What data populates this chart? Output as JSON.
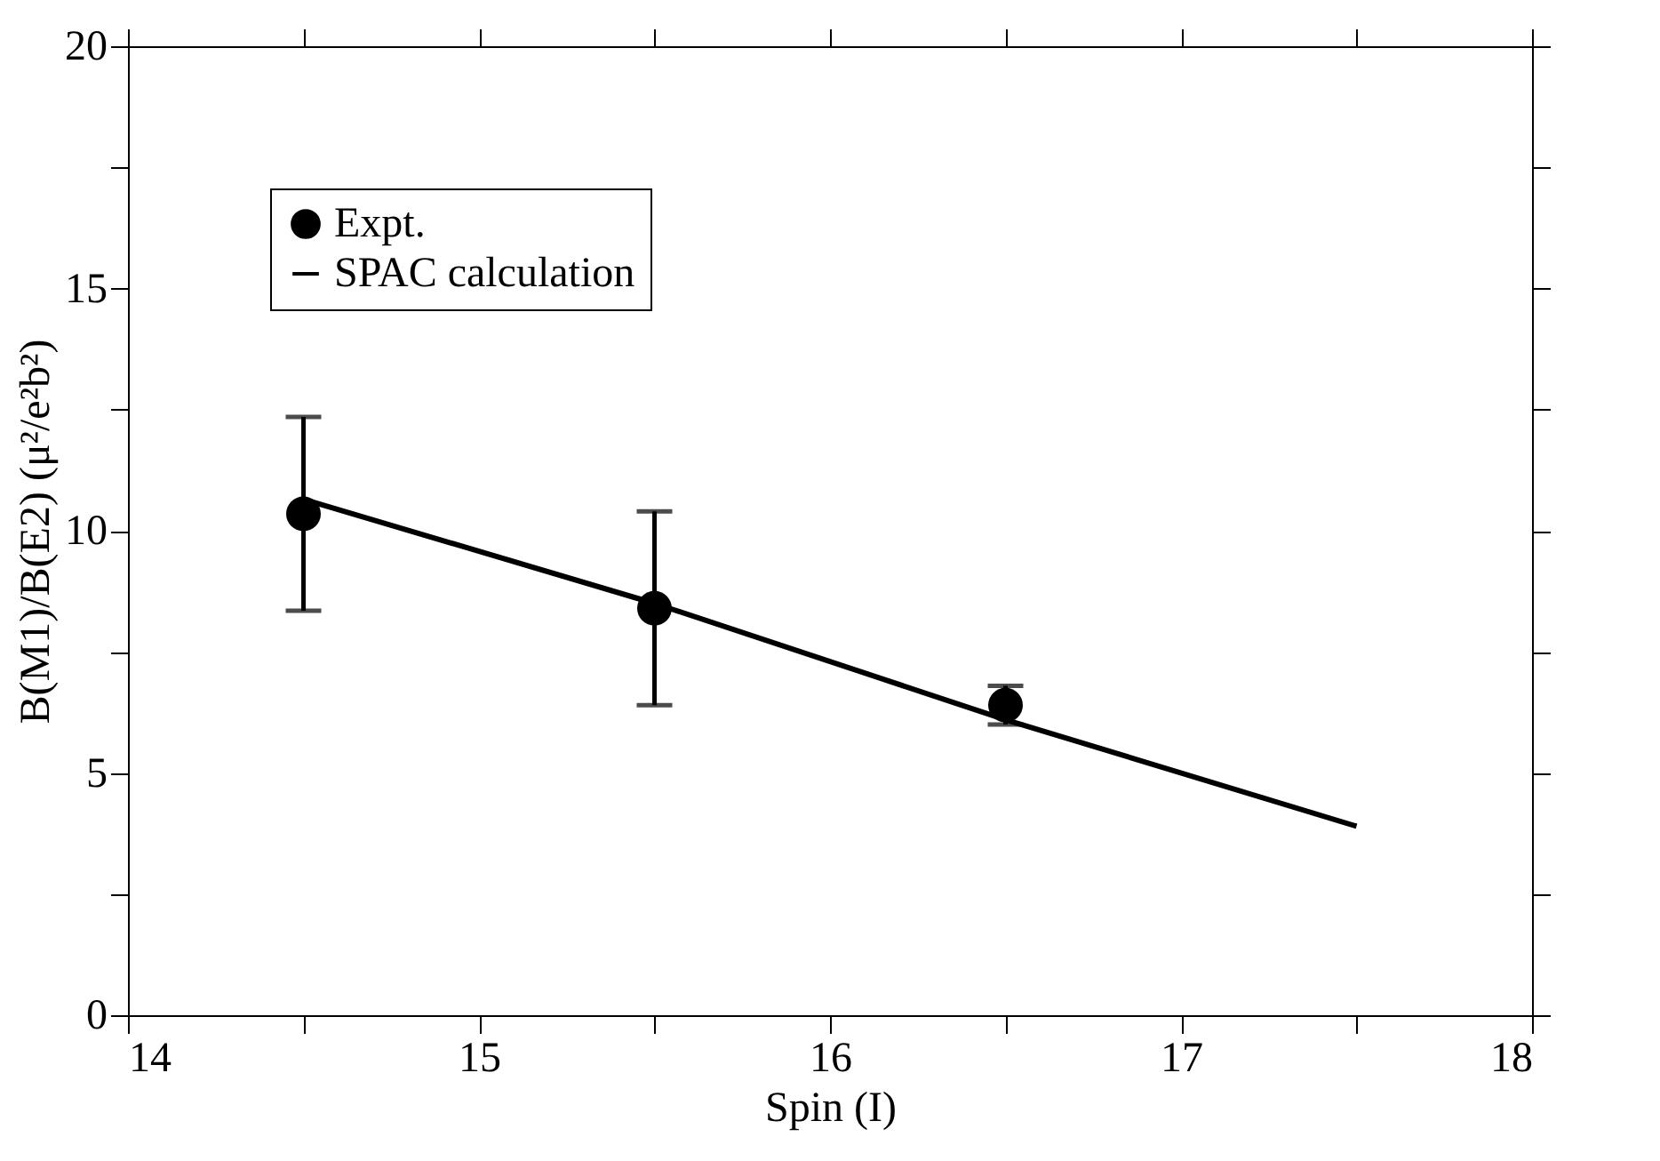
{
  "chart_data": {
    "type": "scatter",
    "xlabel": "Spin (I)",
    "ylabel": "B(M1)/B(E2) (μ²/e²b²)",
    "xlim": [
      14,
      18
    ],
    "ylim": [
      0,
      20
    ],
    "xticks": [
      14,
      {
        "value": 14.5,
        "label": null
      },
      15,
      {
        "value": 15.5,
        "label": null
      },
      16,
      {
        "value": 16.5,
        "label": null
      },
      17,
      {
        "value": 17.5,
        "label": null
      },
      18
    ],
    "yticks": [
      0,
      {
        "value": 2.5,
        "label": null
      },
      5,
      {
        "value": 7.5,
        "label": null
      },
      10,
      {
        "value": 12.5,
        "label": null
      },
      15,
      {
        "value": 17.5,
        "label": null
      },
      20
    ],
    "legend": "top left",
    "grid": false,
    "series": [
      {
        "name": "Expt.",
        "marker": "circle",
        "color": "#000000",
        "x": [
          14.5,
          15.5,
          16.5
        ],
        "values": [
          10.35,
          8.4,
          6.4
        ],
        "errors": [
          2,
          2,
          0.4
        ]
      },
      {
        "name": "SPAC calculation",
        "type": "line",
        "marker": "none",
        "line_style": "solid",
        "color": "#000000",
        "x": [
          14.5,
          15.5,
          16.5,
          17.5
        ],
        "values": [
          10.65,
          8.5,
          6.1,
          3.9
        ]
      }
    ]
  }
}
